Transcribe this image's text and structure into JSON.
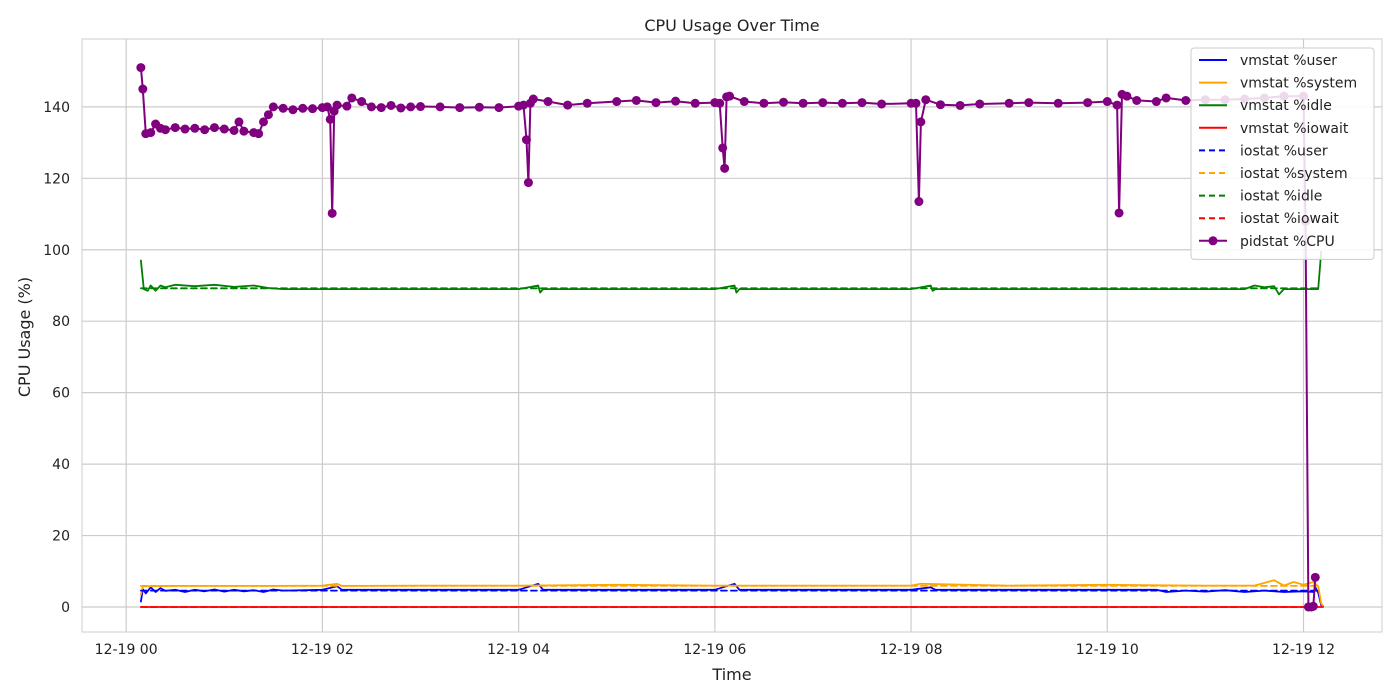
{
  "chart_data": {
    "type": "line",
    "title": "CPU Usage Over Time",
    "xlabel": "Time",
    "ylabel": "CPU Usage (%)",
    "x_ticks": [
      "12-19 00",
      "12-19 02",
      "12-19 04",
      "12-19 06",
      "12-19 08",
      "12-19 10",
      "12-19 12"
    ],
    "x_tick_hours": [
      0,
      2,
      4,
      6,
      8,
      10,
      12
    ],
    "y_ticks": [
      0,
      20,
      40,
      60,
      80,
      100,
      120,
      140
    ],
    "xlim_hours": [
      -0.45,
      12.8
    ],
    "ylim": [
      -7,
      159
    ],
    "grid": true,
    "legend_position": "top-right",
    "time_start": "12-19 00:09",
    "time_end": "12-19 12:12",
    "series": [
      {
        "name": "vmstat %user",
        "color": "#0000ff",
        "style": "solid",
        "marker": false,
        "points": [
          [
            0.15,
            1.5
          ],
          [
            0.17,
            5
          ],
          [
            0.2,
            3.8
          ],
          [
            0.25,
            5.5
          ],
          [
            0.3,
            4.2
          ],
          [
            0.35,
            5.3
          ],
          [
            0.4,
            4.5
          ],
          [
            0.5,
            4.8
          ],
          [
            0.6,
            4.2
          ],
          [
            0.7,
            4.8
          ],
          [
            0.8,
            4.4
          ],
          [
            0.9,
            4.9
          ],
          [
            1.0,
            4.3
          ],
          [
            1.1,
            4.8
          ],
          [
            1.2,
            4.4
          ],
          [
            1.3,
            4.7
          ],
          [
            1.4,
            4.2
          ],
          [
            1.5,
            4.9
          ],
          [
            1.6,
            4.6
          ],
          [
            2.0,
            4.8
          ],
          [
            2.15,
            5.8
          ],
          [
            2.2,
            4.8
          ],
          [
            3.0,
            4.8
          ],
          [
            4.0,
            4.8
          ],
          [
            4.2,
            6.5
          ],
          [
            4.25,
            4.8
          ],
          [
            5.0,
            4.8
          ],
          [
            6.0,
            4.8
          ],
          [
            6.2,
            6.5
          ],
          [
            6.25,
            4.8
          ],
          [
            7.0,
            4.8
          ],
          [
            8.0,
            4.8
          ],
          [
            8.2,
            5.5
          ],
          [
            8.25,
            4.8
          ],
          [
            9.0,
            4.8
          ],
          [
            10.0,
            4.8
          ],
          [
            10.5,
            4.8
          ],
          [
            10.6,
            4.2
          ],
          [
            10.8,
            4.6
          ],
          [
            11.0,
            4.3
          ],
          [
            11.2,
            4.7
          ],
          [
            11.4,
            4.2
          ],
          [
            11.6,
            4.6
          ],
          [
            11.8,
            4.2
          ],
          [
            12.0,
            4.4
          ],
          [
            12.1,
            4.2
          ],
          [
            12.12,
            5.5
          ],
          [
            12.15,
            4.0
          ],
          [
            12.18,
            0.5
          ],
          [
            12.2,
            0.2
          ]
        ]
      },
      {
        "name": "vmstat %system",
        "color": "#ffa500",
        "style": "solid",
        "marker": false,
        "points": [
          [
            0.15,
            3.5
          ],
          [
            0.17,
            5.8
          ],
          [
            0.5,
            5.9
          ],
          [
            1.0,
            5.9
          ],
          [
            1.5,
            5.9
          ],
          [
            2.0,
            6.0
          ],
          [
            2.15,
            6.5
          ],
          [
            2.2,
            5.9
          ],
          [
            3.0,
            6.0
          ],
          [
            4.0,
            6.0
          ],
          [
            5.0,
            6.2
          ],
          [
            6.0,
            6.0
          ],
          [
            7.0,
            6.0
          ],
          [
            8.0,
            6.0
          ],
          [
            8.1,
            6.5
          ],
          [
            9.0,
            6.0
          ],
          [
            10.0,
            6.2
          ],
          [
            11.0,
            6.0
          ],
          [
            11.5,
            6.0
          ],
          [
            11.7,
            7.5
          ],
          [
            11.8,
            6.0
          ],
          [
            11.9,
            7.0
          ],
          [
            12.0,
            6.2
          ],
          [
            12.1,
            7.0
          ],
          [
            12.15,
            5.8
          ],
          [
            12.18,
            1.0
          ],
          [
            12.2,
            0.3
          ]
        ]
      },
      {
        "name": "vmstat %idle",
        "color": "#008000",
        "style": "solid",
        "marker": false,
        "points": [
          [
            0.15,
            97
          ],
          [
            0.18,
            89
          ],
          [
            0.22,
            88.5
          ],
          [
            0.25,
            90
          ],
          [
            0.3,
            88.5
          ],
          [
            0.35,
            90
          ],
          [
            0.4,
            89.5
          ],
          [
            0.5,
            90.2
          ],
          [
            0.7,
            89.8
          ],
          [
            0.9,
            90.2
          ],
          [
            1.1,
            89.6
          ],
          [
            1.3,
            90.0
          ],
          [
            1.45,
            89.3
          ],
          [
            1.6,
            89.0
          ],
          [
            2.0,
            89.0
          ],
          [
            3.0,
            89.0
          ],
          [
            4.0,
            89.0
          ],
          [
            4.2,
            90.0
          ],
          [
            4.22,
            88.0
          ],
          [
            4.25,
            89.0
          ],
          [
            5.0,
            89.0
          ],
          [
            6.0,
            89.0
          ],
          [
            6.2,
            90.0
          ],
          [
            6.22,
            88.0
          ],
          [
            6.25,
            89.0
          ],
          [
            7.0,
            89.0
          ],
          [
            8.0,
            89.0
          ],
          [
            8.2,
            90.0
          ],
          [
            8.22,
            88.5
          ],
          [
            8.25,
            89.0
          ],
          [
            9.0,
            89.0
          ],
          [
            10.0,
            89.0
          ],
          [
            11.0,
            89.0
          ],
          [
            11.4,
            89.0
          ],
          [
            11.5,
            90.0
          ],
          [
            11.6,
            89.5
          ],
          [
            11.7,
            89.8
          ],
          [
            11.75,
            87.5
          ],
          [
            11.8,
            89.0
          ],
          [
            12.1,
            89.0
          ],
          [
            12.15,
            89.0
          ],
          [
            12.18,
            99.5
          ]
        ]
      },
      {
        "name": "vmstat %iowait",
        "color": "#ff0000",
        "style": "solid",
        "marker": false,
        "points": [
          [
            0.15,
            0
          ],
          [
            12.2,
            0
          ]
        ]
      },
      {
        "name": "iostat %user",
        "color": "#0000ff",
        "style": "dashed",
        "marker": false,
        "points": [
          [
            0.15,
            4.6
          ],
          [
            12.15,
            4.6
          ]
        ]
      },
      {
        "name": "iostat %system",
        "color": "#ffa500",
        "style": "dashed",
        "marker": false,
        "points": [
          [
            0.15,
            5.9
          ],
          [
            12.15,
            5.9
          ]
        ]
      },
      {
        "name": "iostat %idle",
        "color": "#008000",
        "style": "dashed",
        "marker": false,
        "points": [
          [
            0.15,
            89.2
          ],
          [
            12.15,
            89.2
          ]
        ]
      },
      {
        "name": "iostat %iowait",
        "color": "#ff0000",
        "style": "dashed",
        "marker": false,
        "points": [
          [
            0.15,
            0
          ],
          [
            12.15,
            0
          ]
        ]
      },
      {
        "name": "pidstat %CPU",
        "color": "#800080",
        "style": "solid",
        "marker": true,
        "points": [
          [
            0.15,
            151
          ],
          [
            0.17,
            145
          ],
          [
            0.2,
            132.5
          ],
          [
            0.25,
            132.8
          ],
          [
            0.3,
            135.2
          ],
          [
            0.35,
            134.0
          ],
          [
            0.4,
            133.6
          ],
          [
            0.5,
            134.2
          ],
          [
            0.6,
            133.8
          ],
          [
            0.7,
            134.0
          ],
          [
            0.8,
            133.6
          ],
          [
            0.9,
            134.2
          ],
          [
            1.0,
            133.8
          ],
          [
            1.1,
            133.4
          ],
          [
            1.15,
            135.8
          ],
          [
            1.2,
            133.2
          ],
          [
            1.3,
            132.8
          ],
          [
            1.35,
            132.5
          ],
          [
            1.4,
            135.8
          ],
          [
            1.45,
            137.8
          ],
          [
            1.5,
            140.0
          ],
          [
            1.6,
            139.6
          ],
          [
            1.7,
            139.2
          ],
          [
            1.8,
            139.6
          ],
          [
            1.9,
            139.5
          ],
          [
            2.0,
            139.8
          ],
          [
            2.05,
            140.0
          ],
          [
            2.08,
            136.5
          ],
          [
            2.1,
            110.2
          ],
          [
            2.12,
            138.8
          ],
          [
            2.15,
            140.5
          ],
          [
            2.25,
            140.2
          ],
          [
            2.3,
            142.5
          ],
          [
            2.4,
            141.5
          ],
          [
            2.5,
            140.0
          ],
          [
            2.6,
            139.8
          ],
          [
            2.7,
            140.4
          ],
          [
            2.8,
            139.7
          ],
          [
            2.9,
            140.0
          ],
          [
            3.0,
            140.1
          ],
          [
            3.2,
            140.0
          ],
          [
            3.4,
            139.8
          ],
          [
            3.6,
            139.9
          ],
          [
            3.8,
            139.8
          ],
          [
            4.0,
            140.2
          ],
          [
            4.05,
            140.5
          ],
          [
            4.08,
            130.8
          ],
          [
            4.1,
            118.8
          ],
          [
            4.12,
            141.0
          ],
          [
            4.15,
            142.2
          ],
          [
            4.3,
            141.5
          ],
          [
            4.5,
            140.5
          ],
          [
            4.7,
            141.0
          ],
          [
            5.0,
            141.5
          ],
          [
            5.2,
            141.8
          ],
          [
            5.4,
            141.2
          ],
          [
            5.6,
            141.6
          ],
          [
            5.8,
            141.0
          ],
          [
            6.0,
            141.2
          ],
          [
            6.05,
            141.0
          ],
          [
            6.08,
            128.5
          ],
          [
            6.1,
            122.8
          ],
          [
            6.12,
            142.8
          ],
          [
            6.15,
            143.0
          ],
          [
            6.3,
            141.5
          ],
          [
            6.5,
            141.0
          ],
          [
            6.7,
            141.3
          ],
          [
            6.9,
            141.0
          ],
          [
            7.1,
            141.2
          ],
          [
            7.3,
            141.0
          ],
          [
            7.5,
            141.2
          ],
          [
            7.7,
            140.8
          ],
          [
            8.0,
            141.0
          ],
          [
            8.05,
            141.0
          ],
          [
            8.08,
            113.5
          ],
          [
            8.1,
            135.8
          ],
          [
            8.15,
            142.0
          ],
          [
            8.3,
            140.6
          ],
          [
            8.5,
            140.4
          ],
          [
            8.7,
            140.8
          ],
          [
            9.0,
            141.0
          ],
          [
            9.2,
            141.2
          ],
          [
            9.5,
            141.0
          ],
          [
            9.8,
            141.2
          ],
          [
            10.0,
            141.5
          ],
          [
            10.1,
            140.5
          ],
          [
            10.12,
            110.3
          ],
          [
            10.15,
            143.5
          ],
          [
            10.2,
            143.0
          ],
          [
            10.3,
            141.8
          ],
          [
            10.5,
            141.5
          ],
          [
            10.6,
            142.5
          ],
          [
            10.8,
            141.8
          ],
          [
            11.0,
            142.0
          ],
          [
            11.2,
            142.0
          ],
          [
            11.4,
            142.2
          ],
          [
            11.6,
            142.5
          ],
          [
            11.8,
            143.0
          ],
          [
            12.0,
            143.0
          ],
          [
            12.02,
            108.0
          ],
          [
            12.05,
            0
          ],
          [
            12.08,
            0
          ],
          [
            12.1,
            0.2
          ],
          [
            12.12,
            8.3
          ]
        ]
      }
    ]
  }
}
